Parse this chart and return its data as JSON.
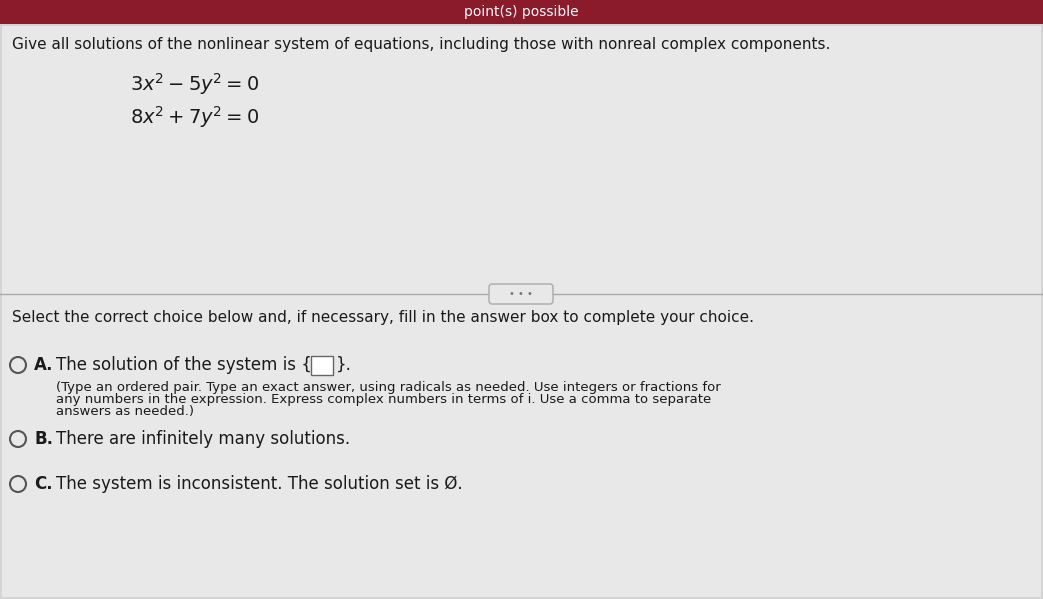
{
  "bg_color": "#d4d4d4",
  "top_bar_color": "#8b1a2a",
  "top_bar_text": "point(s) possible",
  "main_bg": "#e8e8e8",
  "instruction_text": "Give all solutions of the nonlinear system of equations, including those with nonreal complex components.",
  "eq1": "$3x^2 - 5y^2 = 0$",
  "eq2": "$8x^2 + 7y^2 = 0$",
  "divider_ellipse_text": "• • •",
  "select_text": "Select the correct choice below and, if necessary, fill in the answer box to complete your choice.",
  "choice_A_label": "A.",
  "choice_A_main": "The solution of the system is {",
  "choice_A_end": "}.",
  "choice_A_sub1": "(Type an ordered pair. Type an exact answer, using radicals as needed. Use integers or fractions for",
  "choice_A_sub2": "any numbers in the expression. Express complex numbers in terms of i. Use a comma to separate",
  "choice_A_sub3": "answers as needed.)",
  "choice_B_label": "B.",
  "choice_B_text": "There are infinitely many solutions.",
  "choice_C_label": "C.",
  "choice_C_text": "The system is inconsistent. The solution set is Ø.",
  "text_color": "#1a1a1a",
  "circle_color": "#555555",
  "font_size_instruction": 11,
  "font_size_eq": 14,
  "font_size_select": 11,
  "font_size_choice": 11,
  "font_size_sub": 9.5
}
